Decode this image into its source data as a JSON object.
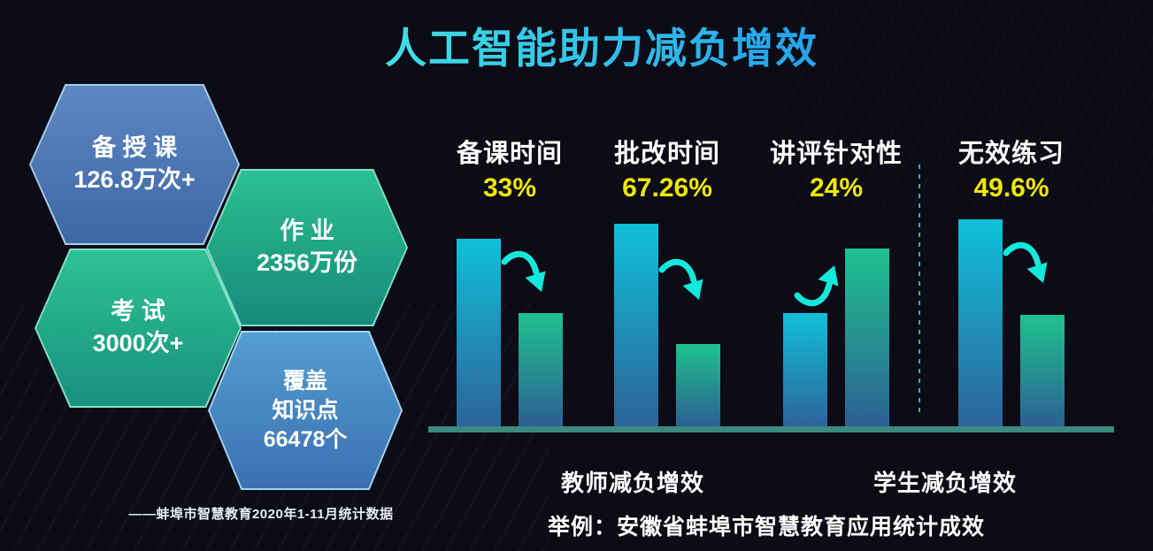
{
  "title": "人工智能助力减负增效",
  "colors": {
    "background": "#0c0c16",
    "title_gradient_start": "#45e9e2",
    "title_gradient_end": "#1f97ef",
    "accent_yellow": "#f2e600",
    "bar_blue_top": "#0fc0da",
    "bar_blue_bottom": "#2d6398",
    "bar_green_top": "#1fc28e",
    "bar_green_bottom": "#2c6093",
    "baseline": "#3a8a80",
    "arrow": "#14e8dc",
    "divider": "#2db3b3",
    "hex_blue_top": "#5d87c4",
    "hex_blue_bottom": "#3e68a4",
    "hex_green_top": "#2bc090",
    "hex_green_bottom": "#168a7a"
  },
  "hexagons": [
    {
      "id": "prep-teach",
      "color": "blue",
      "lines": [
        "备 授 课",
        "126.8万次+"
      ]
    },
    {
      "id": "homework",
      "color": "green",
      "lines": [
        "作 业",
        "2356万份"
      ]
    },
    {
      "id": "exam",
      "color": "green",
      "lines": [
        "考 试",
        "3000次+"
      ]
    },
    {
      "id": "knowledge",
      "color": "blue",
      "lines": [
        "覆盖",
        "知识点",
        "66478个"
      ]
    }
  ],
  "footnote": "——蚌埠市智慧教育2020年1-11月统计数据",
  "chart_data": {
    "type": "bar",
    "title": "人工智能助力减负增效",
    "legend_position": "none",
    "grid": false,
    "height_unit": "relative-px",
    "groups": [
      {
        "label": "备课时间",
        "change": "33%",
        "direction": "decrease",
        "bars": {
          "before": 212,
          "after": 128
        }
      },
      {
        "label": "批改时间",
        "change": "67.26%",
        "direction": "decrease",
        "bars": {
          "before": 229,
          "after": 93
        }
      },
      {
        "label": "讲评针对性",
        "change": "24%",
        "direction": "increase",
        "bars": {
          "before": 128,
          "after": 201
        }
      },
      {
        "label": "无效练习",
        "change": "49.6%",
        "direction": "decrease",
        "bars": {
          "before": 234,
          "after": 126
        }
      }
    ],
    "sections": [
      {
        "label": "教师减负增效",
        "groups": [
          "备课时间",
          "批改时间",
          "讲评针对性"
        ]
      },
      {
        "label": "学生减负增效",
        "groups": [
          "无效练习"
        ]
      }
    ]
  },
  "caption": "举例：安徽省蚌埠市智慧教育应用统计成效"
}
